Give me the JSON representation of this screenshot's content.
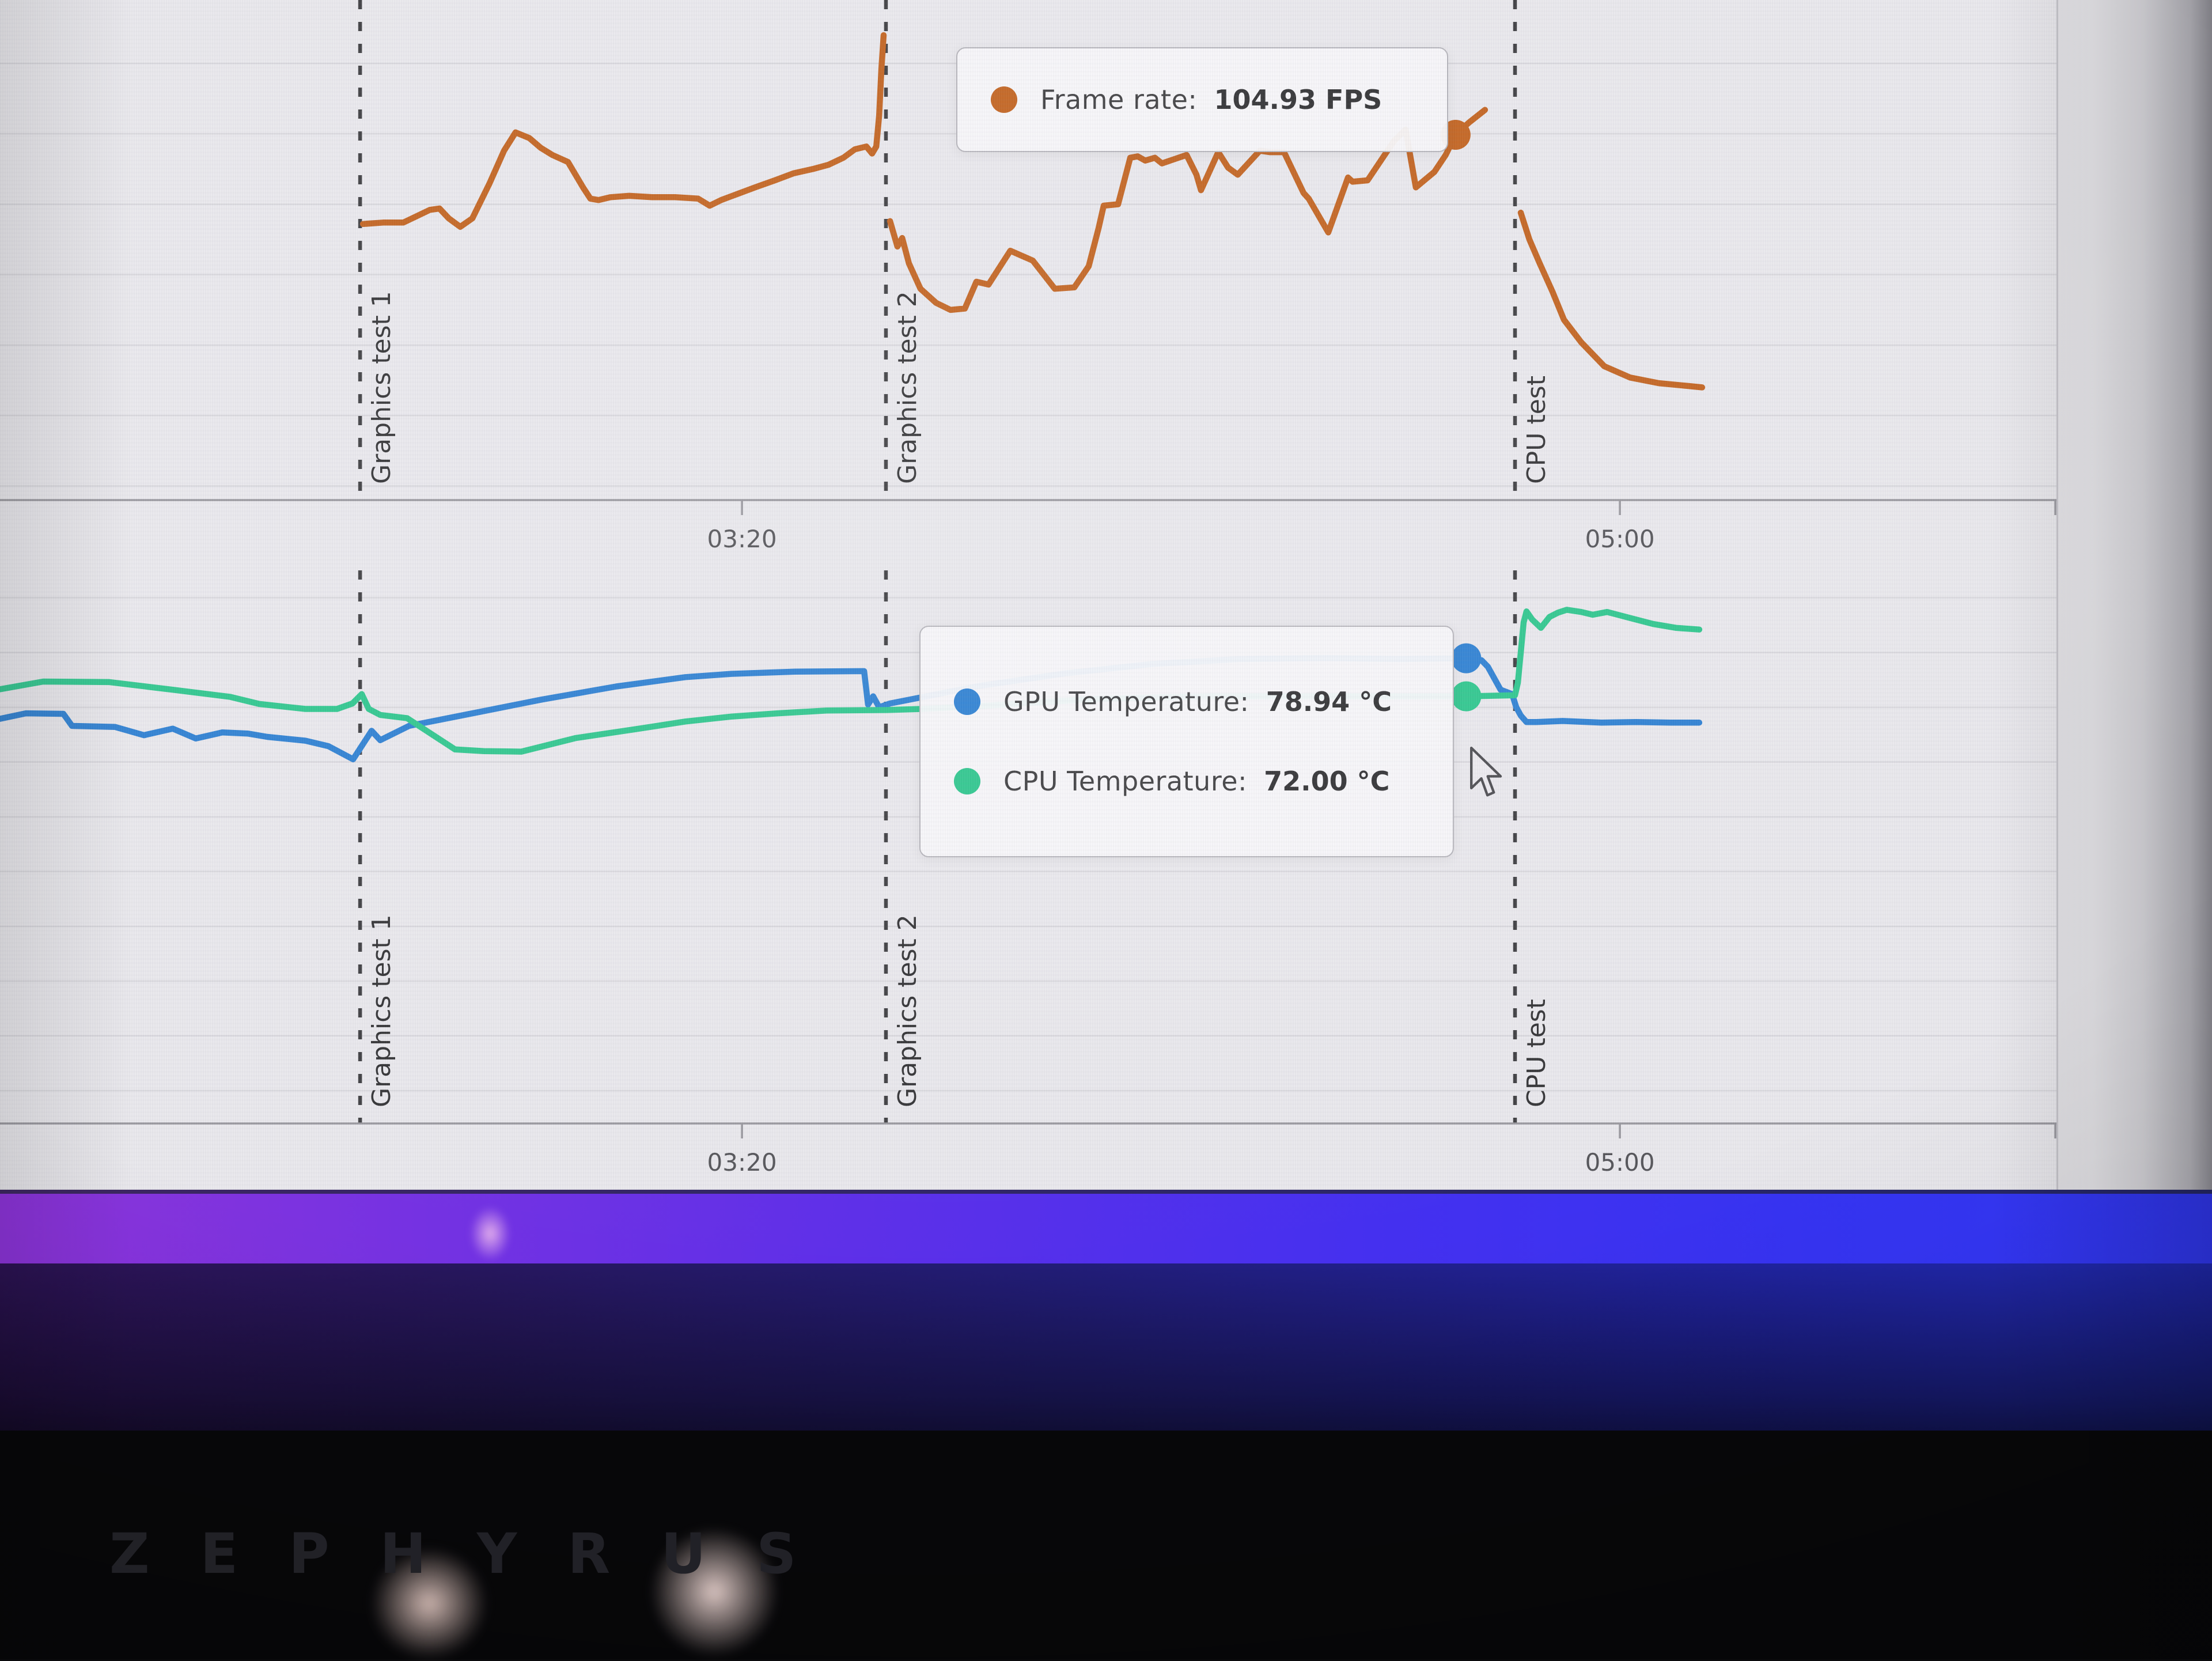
{
  "colors": {
    "frame_rate": "#c2611c",
    "gpu_temp": "#2b7fd2",
    "cpu_temp": "#2cc68c",
    "marker_line": "#3b3b3e",
    "grid": "#d8d7dc",
    "axis": "#97969c",
    "chart_bg": "#e9e8ec"
  },
  "bezel": {
    "logo_text": "ZEPHYRUS"
  },
  "chart_data": [
    {
      "type": "line",
      "xlabel": "",
      "ylabel": "",
      "legend_position": "hover-tooltip",
      "grid": true,
      "ylim": [
        79,
        114.5
      ],
      "grid_start": 80,
      "grid_step": 5,
      "x_ticks": [
        {
          "label": "03:20",
          "x": 0.3608
        },
        {
          "label": "05:00",
          "x": 0.7877
        }
      ],
      "markers": [
        {
          "label": "Graphics test 1",
          "x": 0.1751
        },
        {
          "label": "Graphics test 2",
          "x": 0.4308
        },
        {
          "label": "CPU test",
          "x": 0.7367
        }
      ],
      "tooltip": {
        "rows": [
          {
            "label": "Frame rate: ",
            "value": "104.93 FPS",
            "color": "#c2611c"
          }
        ]
      },
      "series": [
        {
          "name": "Frame rate",
          "unit": "FPS",
          "color": "#c2611c",
          "hover_point": {
            "x": 0.7078,
            "value": 104.93
          },
          "segments": [
            [
              [
                0.1765,
                98.6
              ],
              [
                0.1863,
                98.7
              ],
              [
                0.1961,
                98.7
              ],
              [
                0.209,
                99.6
              ],
              [
                0.2137,
                99.7
              ],
              [
                0.2182,
                99.0
              ],
              [
                0.2238,
                98.4
              ],
              [
                0.2297,
                99.0
              ],
              [
                0.2381,
                101.5
              ],
              [
                0.2451,
                103.8
              ],
              [
                0.2507,
                105.1
              ],
              [
                0.2574,
                104.7
              ],
              [
                0.263,
                104.0
              ],
              [
                0.2686,
                103.5
              ],
              [
                0.2762,
                103.0
              ],
              [
                0.2835,
                101.2
              ],
              [
                0.2871,
                100.4
              ],
              [
                0.291,
                100.3
              ],
              [
                0.2969,
                100.5
              ],
              [
                0.3059,
                100.6
              ],
              [
                0.3171,
                100.5
              ],
              [
                0.3283,
                100.5
              ],
              [
                0.3395,
                100.4
              ],
              [
                0.3451,
                99.9
              ],
              [
                0.3507,
                100.3
              ],
              [
                0.358,
                100.7
              ],
              [
                0.3672,
                101.2
              ],
              [
                0.3768,
                101.7
              ],
              [
                0.386,
                102.2
              ],
              [
                0.3952,
                102.5
              ],
              [
                0.4028,
                102.8
              ],
              [
                0.4101,
                103.3
              ],
              [
                0.4157,
                103.9
              ],
              [
                0.4213,
                104.1
              ],
              [
                0.4241,
                103.6
              ],
              [
                0.4261,
                104.1
              ],
              [
                0.4275,
                106.3
              ],
              [
                0.4286,
                109.6
              ],
              [
                0.4297,
                112.0
              ]
            ],
            [
              [
                0.4328,
                98.8
              ],
              [
                0.4364,
                97.0
              ],
              [
                0.4387,
                97.6
              ],
              [
                0.442,
                95.8
              ],
              [
                0.4476,
                94.0
              ],
              [
                0.4552,
                93.0
              ],
              [
                0.4622,
                92.5
              ],
              [
                0.4692,
                92.6
              ],
              [
                0.4748,
                94.5
              ],
              [
                0.4807,
                94.3
              ],
              [
                0.4913,
                96.7
              ],
              [
                0.5022,
                96.0
              ],
              [
                0.5129,
                94.0
              ],
              [
                0.5224,
                94.1
              ],
              [
                0.5294,
                95.6
              ],
              [
                0.5342,
                98.3
              ],
              [
                0.5367,
                99.9
              ],
              [
                0.5437,
                100.0
              ],
              [
                0.5496,
                103.3
              ],
              [
                0.5532,
                103.4
              ],
              [
                0.5569,
                103.1
              ],
              [
                0.5616,
                103.3
              ],
              [
                0.565,
                102.9
              ],
              [
                0.577,
                103.5
              ],
              [
                0.5818,
                102.1
              ],
              [
                0.584,
                101.0
              ],
              [
                0.5924,
                103.7
              ],
              [
                0.5972,
                102.6
              ],
              [
                0.6019,
                102.1
              ],
              [
                0.6126,
                103.8
              ],
              [
                0.6174,
                103.7
              ],
              [
                0.6244,
                103.7
              ],
              [
                0.6339,
                100.8
              ],
              [
                0.6364,
                100.4
              ],
              [
                0.6459,
                98.0
              ],
              [
                0.6555,
                101.9
              ],
              [
                0.6577,
                101.6
              ],
              [
                0.665,
                101.7
              ],
              [
                0.6779,
                104.5
              ],
              [
                0.6835,
                105.3
              ],
              [
                0.6885,
                101.2
              ],
              [
                0.6975,
                102.3
              ],
              [
                0.703,
                103.5
              ],
              [
                0.7078,
                104.93
              ],
              [
                0.7143,
                105.8
              ],
              [
                0.7221,
                106.7
              ]
            ],
            [
              [
                0.7395,
                99.4
              ],
              [
                0.7437,
                97.5
              ],
              [
                0.7487,
                95.8
              ],
              [
                0.7549,
                93.8
              ],
              [
                0.7605,
                91.8
              ],
              [
                0.7689,
                90.2
              ],
              [
                0.7801,
                88.5
              ],
              [
                0.7927,
                87.7
              ],
              [
                0.8067,
                87.3
              ],
              [
                0.8207,
                87.1
              ],
              [
                0.8277,
                87.0
              ]
            ]
          ]
        }
      ]
    },
    {
      "type": "line",
      "xlabel": "",
      "ylabel": "",
      "legend_position": "hover-tooltip",
      "grid": true,
      "ylim": [
        -6,
        95
      ],
      "grid_start": 0,
      "grid_step": 10,
      "x_ticks": [
        {
          "label": "03:20",
          "x": 0.3608
        },
        {
          "label": "05:00",
          "x": 0.7877
        }
      ],
      "markers": [
        {
          "label": "Graphics test 1",
          "x": 0.1751
        },
        {
          "label": "Graphics test 2",
          "x": 0.4308
        },
        {
          "label": "CPU test",
          "x": 0.7367
        }
      ],
      "tooltip": {
        "rows": [
          {
            "label": "GPU Temperature: ",
            "value": "78.94 °C",
            "color": "#2b7fd2"
          },
          {
            "label": "CPU Temperature: ",
            "value": "72.00 °C",
            "color": "#2cc68c"
          }
        ]
      },
      "series": [
        {
          "name": "GPU Temperature",
          "unit": "°C",
          "color": "#2b7fd2",
          "hover_point": {
            "x": 0.713,
            "value": 78.94
          },
          "segments": [
            [
              [
                0,
                67.9
              ],
              [
                0.0126,
                68.9
              ],
              [
                0.0308,
                68.8
              ],
              [
                0.035,
                66.6
              ],
              [
                0.056,
                66.4
              ],
              [
                0.07,
                64.9
              ],
              [
                0.084,
                66.1
              ],
              [
                0.0952,
                64.3
              ],
              [
                0.1081,
                65.4
              ],
              [
                0.1204,
                65.2
              ],
              [
                0.13,
                64.6
              ],
              [
                0.1485,
                63.9
              ],
              [
                0.1597,
                62.9
              ],
              [
                0.1717,
                60.5
              ],
              [
                0.1807,
                65.7
              ],
              [
                0.1849,
                64.0
              ],
              [
                0.1919,
                65.3
              ],
              [
                0.1989,
                66.6
              ],
              [
                0.2325,
                69.1
              ],
              [
                0.2633,
                71.4
              ],
              [
                0.2997,
                73.8
              ],
              [
                0.3333,
                75.5
              ],
              [
                0.3557,
                76.1
              ],
              [
                0.3866,
                76.5
              ],
              [
                0.4202,
                76.6
              ],
              [
                0.4221,
                70.5
              ],
              [
                0.4246,
                72.0
              ],
              [
                0.4275,
                70.0
              ],
              [
                0.4328,
                70.7
              ],
              [
                0.4762,
                73.9
              ],
              [
                0.5182,
                76.2
              ],
              [
                0.5602,
                77.9
              ],
              [
                0.6022,
                78.8
              ],
              [
                0.6443,
                79.0
              ],
              [
                0.6807,
                78.8
              ],
              [
                0.7,
                78.9
              ],
              [
                0.713,
                78.94
              ],
              [
                0.7204,
                78.6
              ],
              [
                0.7235,
                77.4
              ],
              [
                0.7297,
                73.2
              ],
              [
                0.7353,
                72.4
              ],
              [
                0.7373,
                70.0
              ],
              [
                0.7395,
                68.5
              ],
              [
                0.7423,
                67.3
              ],
              [
                0.7468,
                67.3
              ],
              [
                0.7599,
                67.5
              ],
              [
                0.7787,
                67.2
              ],
              [
                0.7955,
                67.3
              ],
              [
                0.8123,
                67.2
              ],
              [
                0.8263,
                67.2
              ]
            ]
          ]
        },
        {
          "name": "CPU Temperature",
          "unit": "°C",
          "color": "#2cc68c",
          "hover_point": {
            "x": 0.713,
            "value": 72.0
          },
          "segments": [
            [
              [
                0,
                73.3
              ],
              [
                0.021,
                74.7
              ],
              [
                0.0532,
                74.6
              ],
              [
                0.084,
                73.2
              ],
              [
                0.112,
                71.9
              ],
              [
                0.1261,
                70.6
              ],
              [
                0.1485,
                69.7
              ],
              [
                0.1639,
                69.7
              ],
              [
                0.1714,
                70.7
              ],
              [
                0.1759,
                72.4
              ],
              [
                0.1793,
                69.7
              ],
              [
                0.1849,
                68.6
              ],
              [
                0.198,
                68.0
              ],
              [
                0.2213,
                62.3
              ],
              [
                0.2353,
                62.0
              ],
              [
                0.2535,
                61.9
              ],
              [
                0.2801,
                64.4
              ],
              [
                0.3092,
                66.0
              ],
              [
                0.3333,
                67.4
              ],
              [
                0.3555,
                68.3
              ],
              [
                0.3782,
                68.9
              ],
              [
                0.402,
                69.4
              ],
              [
                0.4314,
                69.5
              ],
              [
                0.4482,
                69.7
              ],
              [
                0.4762,
                70.2
              ],
              [
                0.5042,
                70.9
              ],
              [
                0.5322,
                71.5
              ],
              [
                0.5602,
                71.8
              ],
              [
                0.5882,
                72.0
              ],
              [
                0.6443,
                72.0
              ],
              [
                0.6807,
                72.0
              ],
              [
                0.713,
                72.0
              ],
              [
                0.7367,
                72.2
              ],
              [
                0.7381,
                74.5
              ],
              [
                0.7395,
                80.0
              ],
              [
                0.7409,
                85.5
              ],
              [
                0.7423,
                87.5
              ],
              [
                0.7451,
                86.0
              ],
              [
                0.7493,
                84.5
              ],
              [
                0.7535,
                86.5
              ],
              [
                0.7577,
                87.3
              ],
              [
                0.7619,
                87.8
              ],
              [
                0.7689,
                87.4
              ],
              [
                0.7745,
                86.9
              ],
              [
                0.7815,
                87.4
              ],
              [
                0.7927,
                86.3
              ],
              [
                0.8039,
                85.2
              ],
              [
                0.8151,
                84.5
              ],
              [
                0.8263,
                84.2
              ]
            ]
          ]
        }
      ]
    }
  ]
}
